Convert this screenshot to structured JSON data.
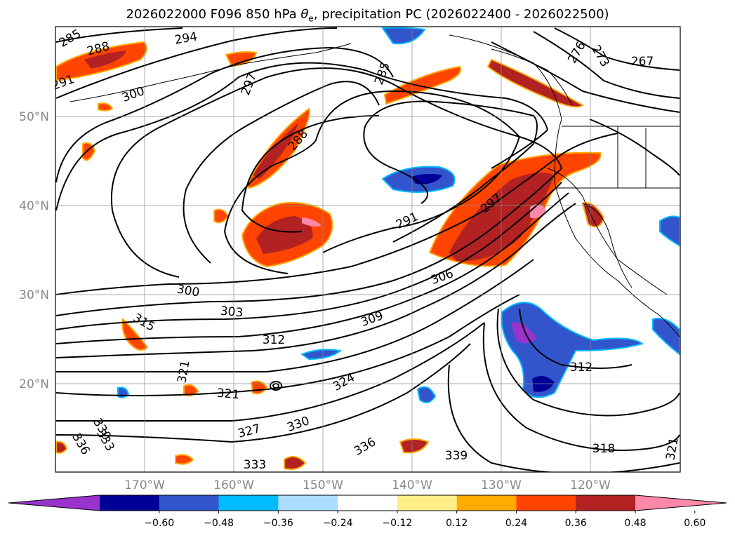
{
  "title_prefix": "2026022000 F096 850 hPa ",
  "title_theta": "θ",
  "title_sub": "e",
  "title_suffix": ", precipitation PC (2026022400 - 2026022500)",
  "lat_labels": [
    "50°N",
    "40°N",
    "30°N",
    "20°N"
  ],
  "lon_labels": [
    "170°W",
    "160°W",
    "150°W",
    "140°W",
    "130°W",
    "120°W"
  ],
  "colorbar": {
    "colors": [
      "#9933cc",
      "#000099",
      "#3355cc",
      "#00bbff",
      "#aaddff",
      "#ffffff",
      "#ffee88",
      "#ffaa00",
      "#ff4400",
      "#b22222",
      "#ff88aa"
    ],
    "tick_labels": [
      "−0.60",
      "−0.48",
      "−0.36",
      "−0.24",
      "−0.12",
      "0.12",
      "0.24",
      "0.36",
      "0.48",
      "0.60"
    ]
  },
  "contour_labels": [
    "285",
    "288",
    "294",
    "291",
    "300",
    "297",
    "285",
    "288",
    "276",
    "273",
    "267",
    "291",
    "297",
    "300",
    "303",
    "306",
    "309",
    "312",
    "315",
    "321",
    "321",
    "324",
    "327",
    "330",
    "330",
    "333",
    "336",
    "312",
    "318",
    "321",
    "333",
    "336",
    "339"
  ]
}
